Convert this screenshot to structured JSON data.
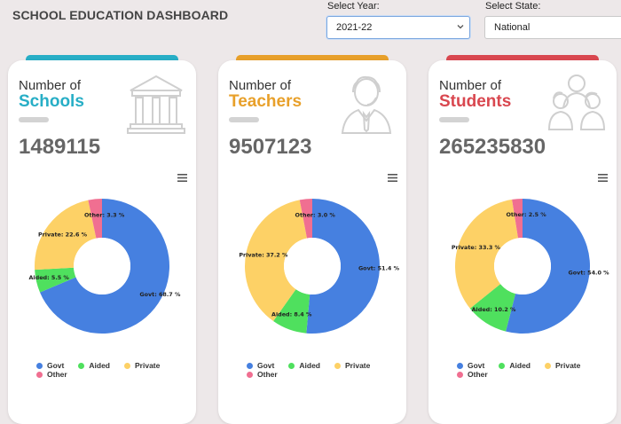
{
  "header": {
    "title": "SCHOOL EDUCATION DASHBOARD"
  },
  "filters": {
    "year": {
      "label": "Select Year:",
      "value": "2021-22"
    },
    "state": {
      "label": "Select State:",
      "value": "National"
    }
  },
  "colors": {
    "govt": "#4680e0",
    "aided": "#4fe05e",
    "private": "#fdd166",
    "other": "#f06f91"
  },
  "legend": {
    "govt": "Govt",
    "aided": "Aided",
    "private": "Private",
    "other": "Other"
  },
  "cards": [
    {
      "title_line1": "Number of",
      "title_line2": "Schools",
      "value": "1489115",
      "accent": "#27aec6",
      "icon": "building-icon",
      "slices": [
        {
          "key": "govt",
          "label": "Govt: 68.7 %",
          "value": 68.7
        },
        {
          "key": "aided",
          "label": "Aided: 5.5 %",
          "value": 5.5
        },
        {
          "key": "private",
          "label": "Private: 22.6 %",
          "value": 22.6
        },
        {
          "key": "other",
          "label": "Other: 3.3 %",
          "value": 3.3
        }
      ]
    },
    {
      "title_line1": "Number of",
      "title_line2": "Teachers",
      "value": "9507123",
      "accent": "#e8a02a",
      "icon": "teacher-icon",
      "slices": [
        {
          "key": "govt",
          "label": "Govt: 51.4 %",
          "value": 51.4
        },
        {
          "key": "aided",
          "label": "Aided: 8.4 %",
          "value": 8.4
        },
        {
          "key": "private",
          "label": "Private: 37.2 %",
          "value": 37.2
        },
        {
          "key": "other",
          "label": "Other: 3.0 %",
          "value": 3.0
        }
      ]
    },
    {
      "title_line1": "Number of",
      "title_line2": "Students",
      "value": "265235830",
      "accent": "#d9474f",
      "icon": "students-icon",
      "slices": [
        {
          "key": "govt",
          "label": "Govt: 54.0 %",
          "value": 54.0
        },
        {
          "key": "aided",
          "label": "Aided: 10.2 %",
          "value": 10.2
        },
        {
          "key": "private",
          "label": "Private: 33.3 %",
          "value": 33.3
        },
        {
          "key": "other",
          "label": "Other: 2.5 %",
          "value": 2.5
        }
      ]
    }
  ]
}
